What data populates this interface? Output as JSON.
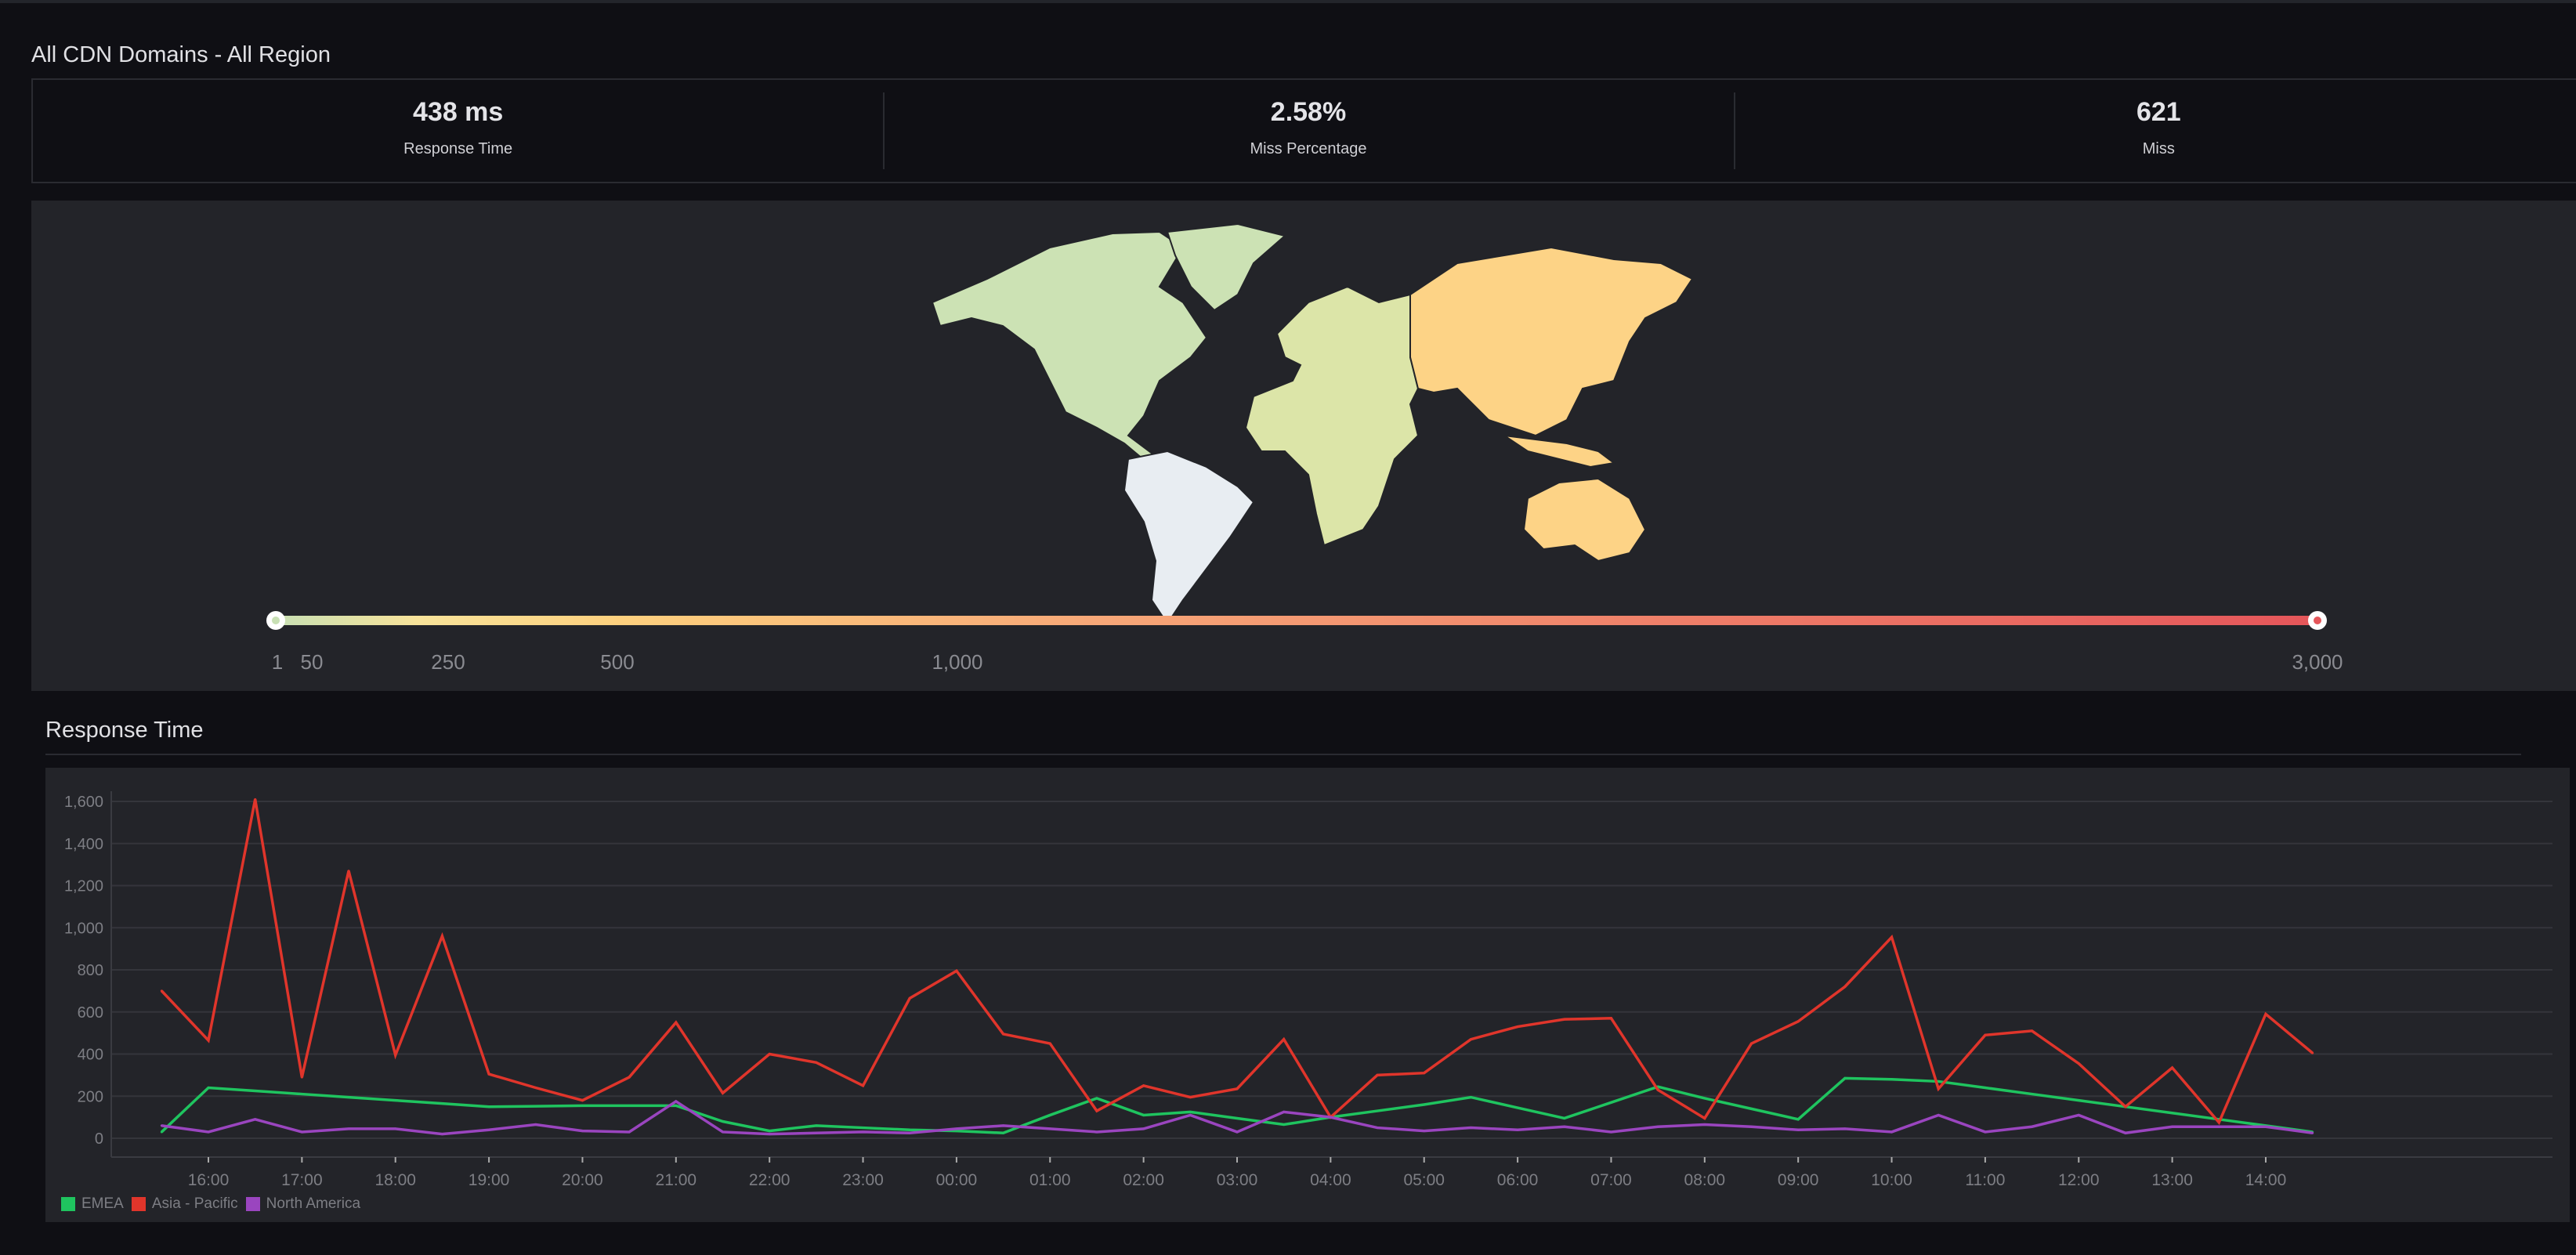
{
  "header": {
    "title": "All CDN Domains - All Region"
  },
  "stats": [
    {
      "value": "438 ms",
      "label": "Response Time"
    },
    {
      "value": "2.58%",
      "label": "Miss Percentage"
    },
    {
      "value": "621",
      "label": "Miss"
    }
  ],
  "map": {
    "scale_labels": [
      "1",
      "50",
      "250",
      "500",
      "1,000",
      "3,000"
    ],
    "scale_min": 1,
    "scale_max": 3000,
    "gradient_colors": [
      "#c8e0b4",
      "#f8e39a",
      "#fdd07e",
      "#f7a878",
      "#ee7d68",
      "#e5565a"
    ],
    "region_colors": {
      "north_america": "#cce2b4",
      "south_america": "#e8edf2",
      "europe_africa": "#dce5a8",
      "asia_pacific": "#fdd386"
    }
  },
  "response_time": {
    "title": "Response Time"
  },
  "chart_data": {
    "type": "line",
    "title": "",
    "xlabel": "",
    "ylabel": "",
    "ylim": [
      0,
      1700
    ],
    "yticks": [
      "0",
      "200",
      "400",
      "600",
      "800",
      "1,000",
      "1,200",
      "1,400",
      "1,600"
    ],
    "xticks": [
      "16:00",
      "17:00",
      "18:00",
      "19:00",
      "20:00",
      "21:00",
      "22:00",
      "23:00",
      "00:00",
      "01:00",
      "02:00",
      "03:00",
      "04:00",
      "05:00",
      "06:00",
      "07:00",
      "08:00",
      "09:00",
      "10:00",
      "11:00",
      "12:00",
      "13:00",
      "14:00"
    ],
    "x": [
      "15:30",
      "16:00",
      "16:30",
      "17:00",
      "17:30",
      "18:00",
      "18:30",
      "19:00",
      "19:30",
      "20:00",
      "20:30",
      "21:00",
      "21:30",
      "22:00",
      "22:30",
      "23:00",
      "23:30",
      "00:00",
      "00:30",
      "01:00",
      "01:30",
      "02:00",
      "02:30",
      "03:00",
      "03:30",
      "04:00",
      "04:30",
      "05:00",
      "05:30",
      "06:00",
      "06:30",
      "07:00",
      "07:30",
      "08:00",
      "08:30",
      "09:00",
      "09:30",
      "10:00",
      "10:30",
      "11:00",
      "11:30",
      "12:00",
      "12:30",
      "13:00",
      "13:30",
      "14:00",
      "14:30"
    ],
    "grid": true,
    "legend": "bottom-left",
    "series": [
      {
        "name": "EMEA",
        "color": "#1fc45f",
        "values": [
          30,
          240,
          225,
          210,
          195,
          180,
          165,
          150,
          152,
          155,
          155,
          155,
          80,
          35,
          60,
          50,
          40,
          35,
          25,
          110,
          190,
          110,
          125,
          95,
          65,
          100,
          130,
          160,
          195,
          145,
          95,
          170,
          245,
          190,
          140,
          90,
          285,
          280,
          270,
          240,
          210,
          180,
          150,
          120,
          90,
          60,
          30
        ]
      },
      {
        "name": "Asia - Pacific",
        "color": "#e0352b",
        "values": [
          700,
          465,
          1610,
          290,
          1270,
          395,
          960,
          305,
          240,
          180,
          290,
          550,
          215,
          400,
          360,
          250,
          665,
          795,
          495,
          450,
          130,
          250,
          195,
          235,
          470,
          100,
          300,
          310,
          470,
          530,
          565,
          570,
          230,
          95,
          450,
          555,
          720,
          955,
          235,
          490,
          510,
          355,
          150,
          335,
          75,
          590,
          405
        ]
      },
      {
        "name": "North America",
        "color": "#9a45bf",
        "values": [
          60,
          30,
          90,
          30,
          45,
          45,
          20,
          40,
          65,
          35,
          30,
          175,
          30,
          20,
          25,
          30,
          25,
          45,
          60,
          45,
          30,
          45,
          110,
          30,
          125,
          100,
          50,
          35,
          50,
          40,
          55,
          30,
          55,
          65,
          55,
          40,
          45,
          30,
          110,
          30,
          55,
          110,
          25,
          55,
          55,
          55,
          25
        ]
      }
    ]
  }
}
